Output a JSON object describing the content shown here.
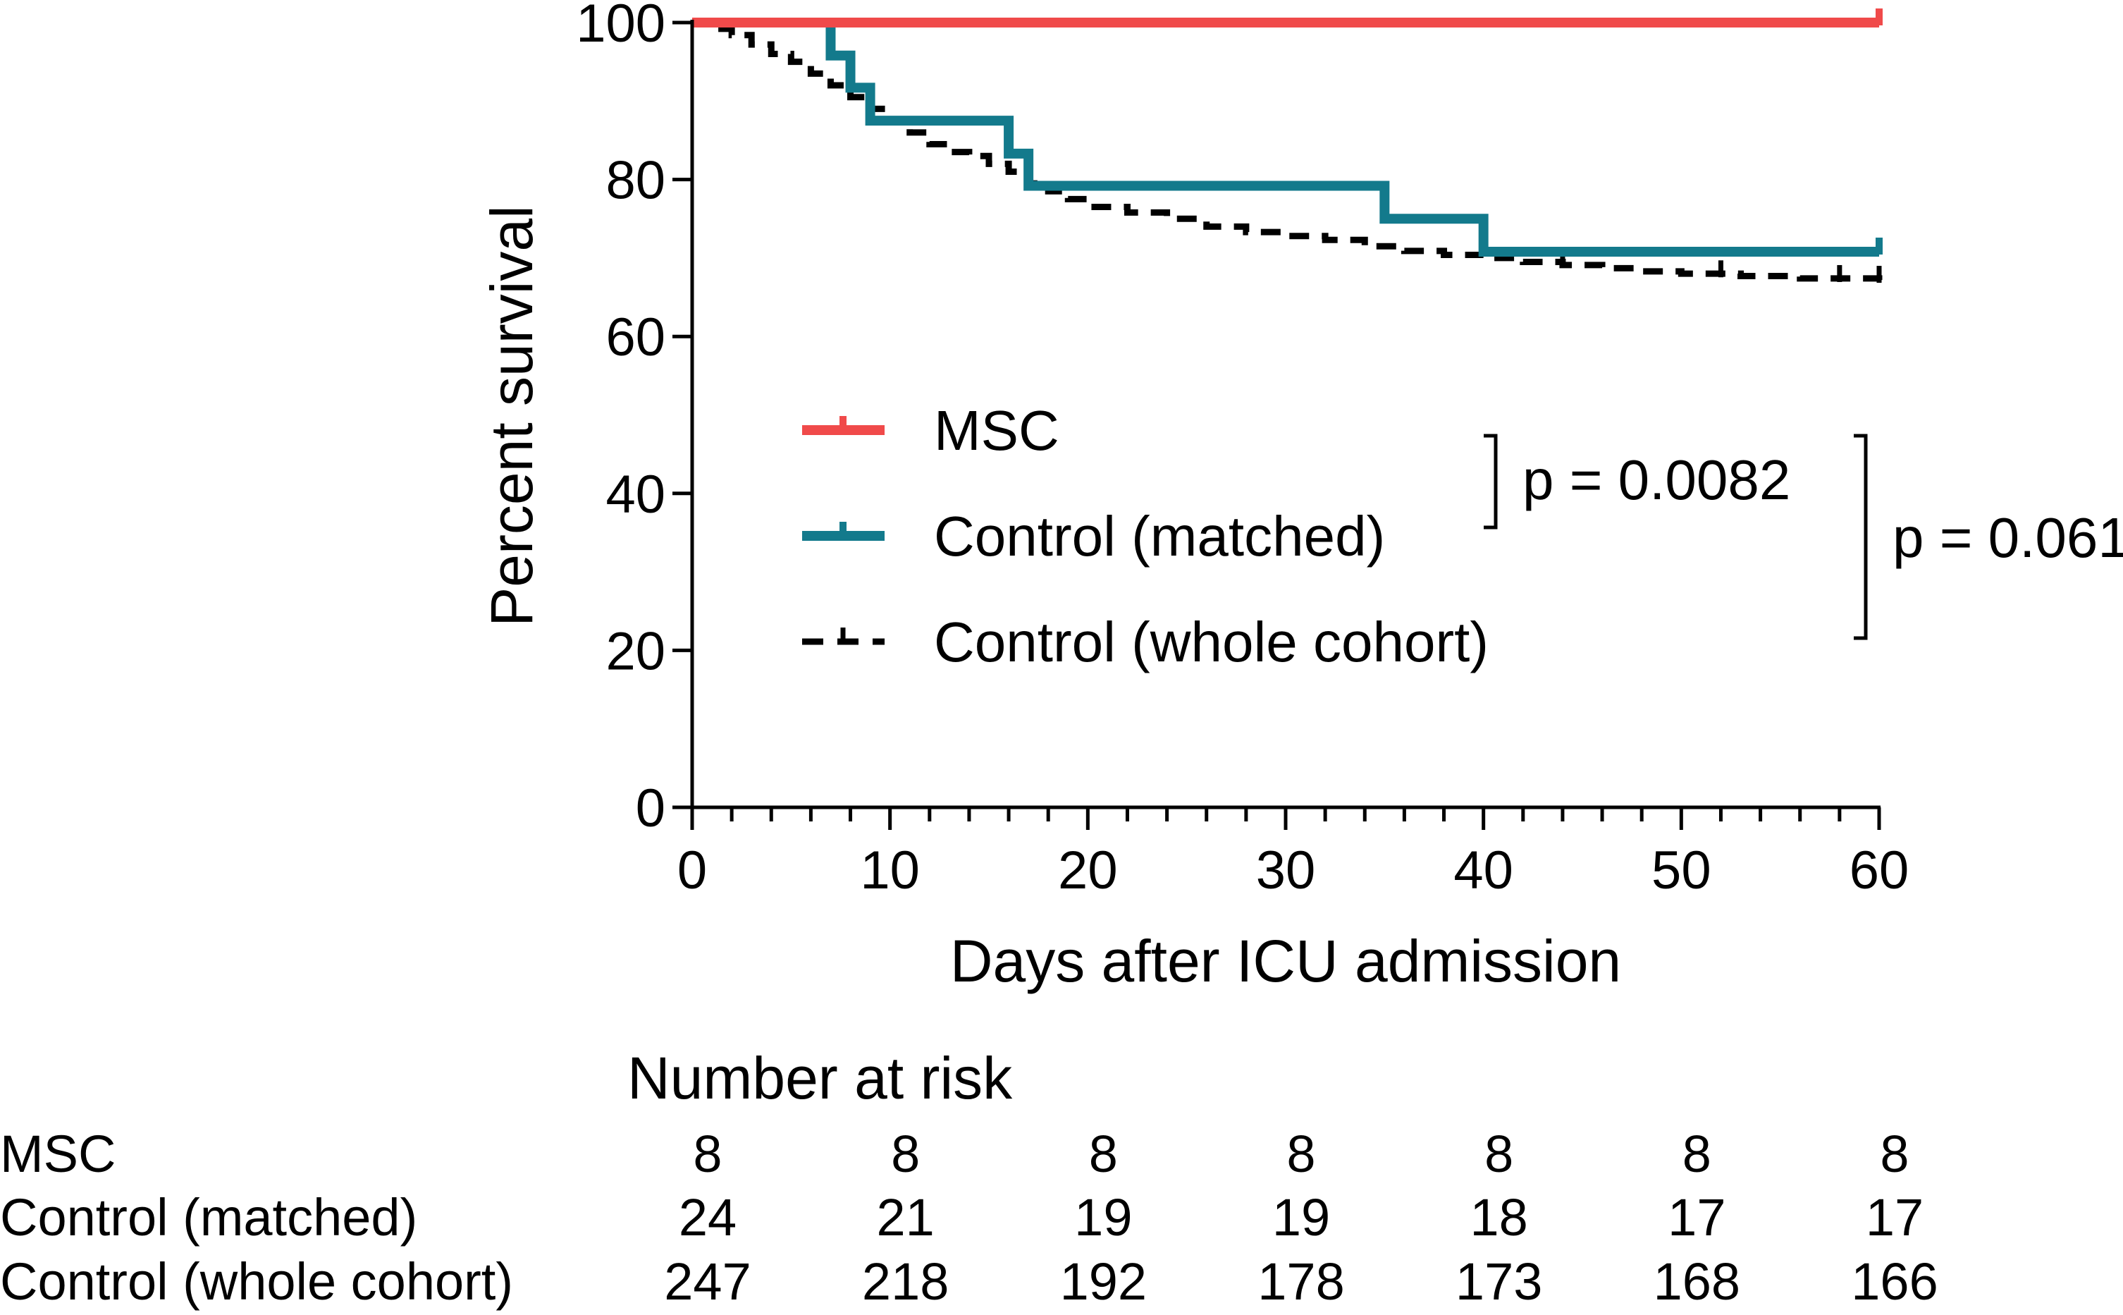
{
  "chart_data": {
    "type": "line",
    "subtype": "kaplan-meier",
    "title": "",
    "xlabel": "Days after ICU admission",
    "ylabel": "Percent survival",
    "xlim": [
      0,
      60
    ],
    "ylim": [
      0,
      100
    ],
    "x_ticks": [
      0,
      10,
      20,
      30,
      40,
      50,
      60
    ],
    "y_ticks": [
      0,
      20,
      40,
      60,
      80,
      100
    ],
    "series": [
      {
        "name": "MSC",
        "color": "#f04a4a",
        "style": "solid",
        "steps": [
          [
            0,
            100
          ],
          [
            60,
            100
          ]
        ],
        "censor": [
          [
            60,
            100
          ]
        ]
      },
      {
        "name": "Control (matched)",
        "color": "#137a8c",
        "style": "solid",
        "steps": [
          [
            0,
            100
          ],
          [
            7,
            95.8
          ],
          [
            8,
            91.7
          ],
          [
            9,
            87.5
          ],
          [
            16,
            83.3
          ],
          [
            17,
            79.2
          ],
          [
            35,
            75.0
          ],
          [
            40,
            70.8
          ],
          [
            60,
            70.8
          ]
        ],
        "censor": [
          [
            60,
            70.8
          ]
        ]
      },
      {
        "name": "Control (whole cohort)",
        "color": "#000000",
        "style": "dashed",
        "steps": [
          [
            0,
            100
          ],
          [
            1,
            99.2
          ],
          [
            2,
            98.4
          ],
          [
            3,
            97.2
          ],
          [
            4,
            96.0
          ],
          [
            5,
            95.0
          ],
          [
            6,
            93.5
          ],
          [
            7,
            92.0
          ],
          [
            8,
            90.5
          ],
          [
            9,
            89.0
          ],
          [
            10,
            87.5
          ],
          [
            11,
            86.0
          ],
          [
            12,
            84.5
          ],
          [
            13,
            83.5
          ],
          [
            14,
            83.0
          ],
          [
            15,
            82.0
          ],
          [
            16,
            81.0
          ],
          [
            17,
            79.5
          ],
          [
            18,
            78.5
          ],
          [
            19,
            77.5
          ],
          [
            20,
            76.5
          ],
          [
            22,
            75.8
          ],
          [
            24,
            75.0
          ],
          [
            26,
            74.0
          ],
          [
            28,
            73.3
          ],
          [
            30,
            72.8
          ],
          [
            32,
            72.3
          ],
          [
            34,
            71.5
          ],
          [
            36,
            70.9
          ],
          [
            38,
            70.4
          ],
          [
            40,
            70.0
          ],
          [
            42,
            69.5
          ],
          [
            44,
            69.1
          ],
          [
            46,
            68.7
          ],
          [
            48,
            68.3
          ],
          [
            50,
            68.0
          ],
          [
            53,
            67.7
          ],
          [
            56,
            67.4
          ],
          [
            60,
            67.2
          ]
        ],
        "censor": [
          [
            44,
            69.1
          ],
          [
            52,
            67.9
          ],
          [
            58,
            67.3
          ],
          [
            60,
            67.2
          ]
        ]
      }
    ],
    "legend": {
      "position": "center",
      "entries": [
        "MSC",
        "Control (matched)",
        "Control (whole cohort)"
      ]
    },
    "annotations": [
      {
        "text": "p = 0.0082",
        "spans": [
          "MSC",
          "Control (matched)"
        ]
      },
      {
        "text": "p = 0.061",
        "spans": [
          "MSC",
          "Control (whole cohort)"
        ]
      }
    ],
    "risk_table": {
      "title": "Number at risk",
      "days": [
        0,
        10,
        20,
        30,
        40,
        50,
        60
      ],
      "rows": [
        {
          "label": "MSC",
          "values": [
            "8",
            "8",
            "8",
            "8",
            "8",
            "8",
            "8"
          ]
        },
        {
          "label": "Control (matched)",
          "values": [
            "24",
            "21",
            "19",
            "19",
            "18",
            "17",
            "17"
          ]
        },
        {
          "label": "Control (whole cohort)",
          "values": [
            "247",
            "218",
            "192",
            "178",
            "173",
            "168",
            "166"
          ]
        }
      ]
    }
  }
}
